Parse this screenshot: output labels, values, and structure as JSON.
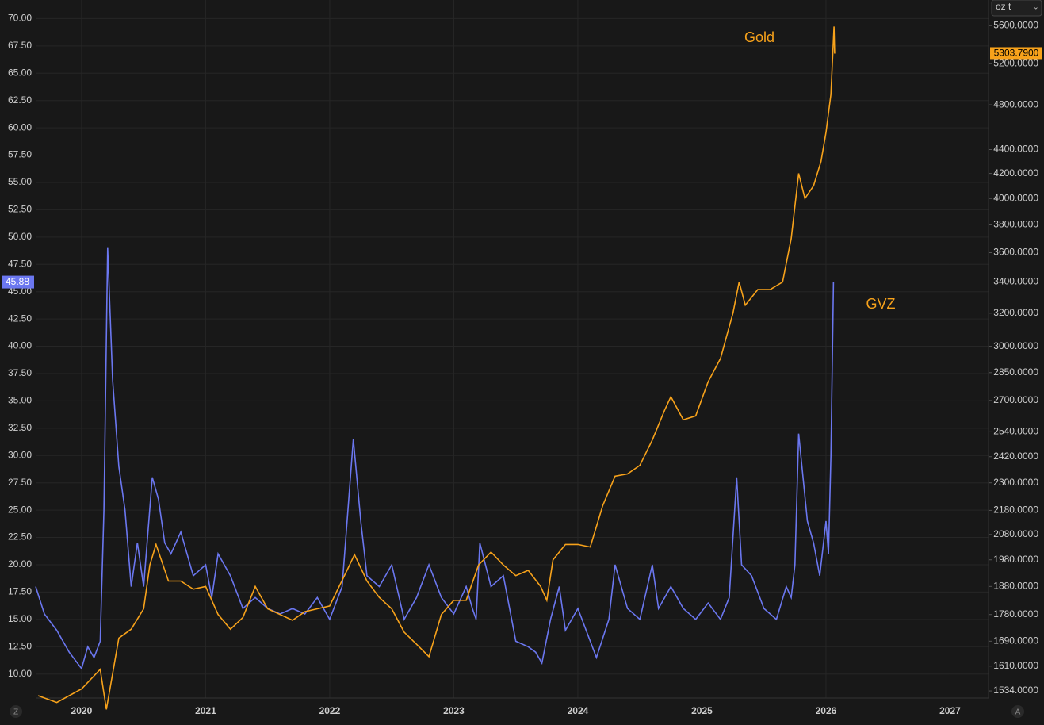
{
  "ui": {
    "unit_selector": "oz t",
    "left_button": "Z",
    "right_button": "A"
  },
  "chart_data": {
    "type": "line",
    "grid": true,
    "xlim": [
      2019.63,
      2027.31
    ],
    "xticks": [
      2020,
      2021,
      2022,
      2023,
      2024,
      2025,
      2026,
      2027
    ],
    "ylim": [
      7.8,
      71.7
    ],
    "yticks": [
      {
        "value": 10,
        "label": "10.00"
      },
      {
        "value": 12.5,
        "label": "12.50"
      },
      {
        "value": 15,
        "label": "15.00"
      },
      {
        "value": 17.5,
        "label": "17.50"
      },
      {
        "value": 20,
        "label": "20.00"
      },
      {
        "value": 22.5,
        "label": "22.50"
      },
      {
        "value": 25,
        "label": "25.00"
      },
      {
        "value": 27.5,
        "label": "27.50"
      },
      {
        "value": 30,
        "label": "30.00"
      },
      {
        "value": 32.5,
        "label": "32.50"
      },
      {
        "value": 35,
        "label": "35.00"
      },
      {
        "value": 37.5,
        "label": "37.50"
      },
      {
        "value": 40,
        "label": "40.00"
      },
      {
        "value": 42.5,
        "label": "42.50"
      },
      {
        "value": 45,
        "label": "45.00"
      },
      {
        "value": 47.5,
        "label": "47.50"
      },
      {
        "value": 50,
        "label": "50.00"
      },
      {
        "value": 52.5,
        "label": "52.50"
      },
      {
        "value": 55,
        "label": "55.00"
      },
      {
        "value": 57.5,
        "label": "57.50"
      },
      {
        "value": 60,
        "label": "60.00"
      },
      {
        "value": 62.5,
        "label": "62.50"
      },
      {
        "value": 65,
        "label": "65.00"
      },
      {
        "value": 67.5,
        "label": "67.50"
      },
      {
        "value": 70,
        "label": "70.00"
      }
    ],
    "y2lim": [
      1513,
      5886
    ],
    "y2scale": "log",
    "y2ticks": [
      {
        "value": 1534,
        "label": "1534.0000"
      },
      {
        "value": 1610,
        "label": "1610.0000"
      },
      {
        "value": 1690,
        "label": "1690.0000"
      },
      {
        "value": 1780,
        "label": "1780.0000"
      },
      {
        "value": 1880,
        "label": "1880.0000"
      },
      {
        "value": 1980,
        "label": "1980.0000"
      },
      {
        "value": 2080,
        "label": "2080.0000"
      },
      {
        "value": 2180,
        "label": "2180.0000"
      },
      {
        "value": 2300,
        "label": "2300.0000"
      },
      {
        "value": 2420,
        "label": "2420.0000"
      },
      {
        "value": 2540,
        "label": "2540.0000"
      },
      {
        "value": 2700,
        "label": "2700.0000"
      },
      {
        "value": 2850,
        "label": "2850.0000"
      },
      {
        "value": 3000,
        "label": "3000.0000"
      },
      {
        "value": 3200,
        "label": "3200.0000"
      },
      {
        "value": 3400,
        "label": "3400.0000"
      },
      {
        "value": 3600,
        "label": "3600.0000"
      },
      {
        "value": 3800,
        "label": "3800.0000"
      },
      {
        "value": 4000,
        "label": "4000.0000"
      },
      {
        "value": 4200,
        "label": "4200.0000"
      },
      {
        "value": 4400,
        "label": "4400.0000"
      },
      {
        "value": 4800,
        "label": "4800.0000"
      },
      {
        "value": 5200,
        "label": "5200.0000"
      },
      {
        "value": 5600,
        "label": "5600.0000"
      }
    ],
    "series": [
      {
        "name": "GVZ",
        "color": "#6b77f0",
        "axis": "y",
        "x": [
          2019.63,
          2019.7,
          2019.8,
          2019.9,
          2020.0,
          2020.05,
          2020.1,
          2020.15,
          2020.18,
          2020.21,
          2020.25,
          2020.3,
          2020.35,
          2020.4,
          2020.45,
          2020.5,
          2020.57,
          2020.62,
          2020.67,
          2020.72,
          2020.8,
          2020.9,
          2021.0,
          2021.05,
          2021.1,
          2021.2,
          2021.3,
          2021.4,
          2021.5,
          2021.6,
          2021.7,
          2021.8,
          2021.9,
          2022.0,
          2022.1,
          2022.19,
          2022.25,
          2022.3,
          2022.4,
          2022.5,
          2022.6,
          2022.7,
          2022.8,
          2022.9,
          2023.0,
          2023.1,
          2023.15,
          2023.18,
          2023.21,
          2023.3,
          2023.4,
          2023.5,
          2023.6,
          2023.66,
          2023.71,
          2023.78,
          2023.85,
          2023.9,
          2024.0,
          2024.1,
          2024.15,
          2024.25,
          2024.3,
          2024.4,
          2024.5,
          2024.6,
          2024.65,
          2024.75,
          2024.85,
          2024.95,
          2025.05,
          2025.15,
          2025.22,
          2025.28,
          2025.32,
          2025.4,
          2025.5,
          2025.6,
          2025.68,
          2025.72,
          2025.75,
          2025.78,
          2025.85,
          2025.9,
          2025.95,
          2026.0,
          2026.02,
          2026.04,
          2026.06
        ],
        "values": [
          18,
          15.5,
          14,
          12,
          10.5,
          12.5,
          11.5,
          13,
          25,
          49,
          37,
          29,
          25,
          18,
          22,
          18,
          28,
          26,
          22,
          21,
          23,
          19,
          20,
          17,
          21,
          19,
          16,
          17,
          16,
          15.5,
          16,
          15.5,
          17,
          15,
          18,
          31.5,
          24,
          19,
          18,
          20,
          15,
          17,
          20,
          17,
          15.5,
          18,
          16,
          15,
          22,
          18,
          19,
          13,
          12.5,
          12,
          11,
          15,
          18,
          14,
          16,
          13,
          11.5,
          15,
          20,
          16,
          15,
          20,
          16,
          18,
          16,
          15,
          16.5,
          15,
          17,
          28,
          20,
          19,
          16,
          15,
          18,
          17,
          20,
          32,
          24,
          22,
          19,
          24,
          21,
          30,
          45.88
        ],
        "value_labels": [
          null,
          null,
          null,
          null,
          null,
          null,
          null,
          null,
          null,
          null,
          null,
          null,
          null,
          null,
          null,
          null,
          null,
          null,
          null,
          null,
          null,
          null,
          null,
          null,
          null,
          null,
          null,
          null,
          null,
          null,
          null,
          null,
          null,
          null,
          null,
          null,
          null,
          null,
          null,
          null,
          null,
          null,
          null,
          null,
          null,
          null,
          null,
          null,
          null,
          null,
          null,
          null,
          null,
          null,
          null,
          null,
          null,
          null,
          null,
          null,
          null,
          null,
          null,
          null,
          null,
          null,
          null,
          null,
          null,
          null,
          null,
          null,
          null,
          null,
          null,
          null,
          null,
          null,
          null,
          null,
          null,
          null,
          null,
          null,
          null,
          null,
          null,
          null,
          "45.88"
        ]
      },
      {
        "name": "Gold",
        "color": "#f7a21b",
        "axis": "y2",
        "x": [
          2019.65,
          2019.8,
          2020.0,
          2020.15,
          2020.2,
          2020.3,
          2020.4,
          2020.5,
          2020.55,
          2020.6,
          2020.7,
          2020.8,
          2020.9,
          2021.0,
          2021.1,
          2021.2,
          2021.3,
          2021.4,
          2021.5,
          2021.6,
          2021.7,
          2021.8,
          2021.9,
          2022.0,
          2022.15,
          2022.2,
          2022.3,
          2022.4,
          2022.5,
          2022.6,
          2022.7,
          2022.8,
          2022.9,
          2023.0,
          2023.1,
          2023.2,
          2023.3,
          2023.4,
          2023.5,
          2023.6,
          2023.7,
          2023.75,
          2023.8,
          2023.9,
          2024.0,
          2024.1,
          2024.2,
          2024.3,
          2024.4,
          2024.5,
          2024.6,
          2024.7,
          2024.75,
          2024.85,
          2024.95,
          2025.05,
          2025.15,
          2025.25,
          2025.3,
          2025.35,
          2025.45,
          2025.55,
          2025.65,
          2025.72,
          2025.78,
          2025.83,
          2025.9,
          2025.96,
          2026.0,
          2026.04,
          2026.065,
          2026.07
        ],
        "values": [
          1520,
          1500,
          1540,
          1600,
          1480,
          1700,
          1730,
          1800,
          1960,
          2040,
          1900,
          1900,
          1870,
          1880,
          1780,
          1730,
          1770,
          1880,
          1800,
          1780,
          1760,
          1790,
          1800,
          1810,
          1950,
          2000,
          1900,
          1840,
          1800,
          1720,
          1680,
          1640,
          1780,
          1830,
          1830,
          1960,
          2010,
          1960,
          1920,
          1940,
          1880,
          1830,
          1980,
          2040,
          2040,
          2030,
          2200,
          2330,
          2340,
          2380,
          2500,
          2650,
          2720,
          2600,
          2620,
          2800,
          2930,
          3200,
          3400,
          3250,
          3350,
          3350,
          3400,
          3700,
          4200,
          4000,
          4100,
          4300,
          4550,
          4900,
          5590,
          5303.79
        ],
        "value_labels": [
          null,
          null,
          null,
          null,
          null,
          null,
          null,
          null,
          null,
          null,
          null,
          null,
          null,
          null,
          null,
          null,
          null,
          null,
          null,
          null,
          null,
          null,
          null,
          null,
          null,
          null,
          null,
          null,
          null,
          null,
          null,
          null,
          null,
          null,
          null,
          null,
          null,
          null,
          null,
          null,
          null,
          null,
          null,
          null,
          null,
          null,
          null,
          null,
          null,
          null,
          null,
          null,
          null,
          null,
          null,
          null,
          null,
          null,
          null,
          null,
          null,
          null,
          null,
          null,
          null,
          null,
          null,
          null,
          null,
          null,
          null,
          "5303.7900"
        ]
      }
    ]
  }
}
